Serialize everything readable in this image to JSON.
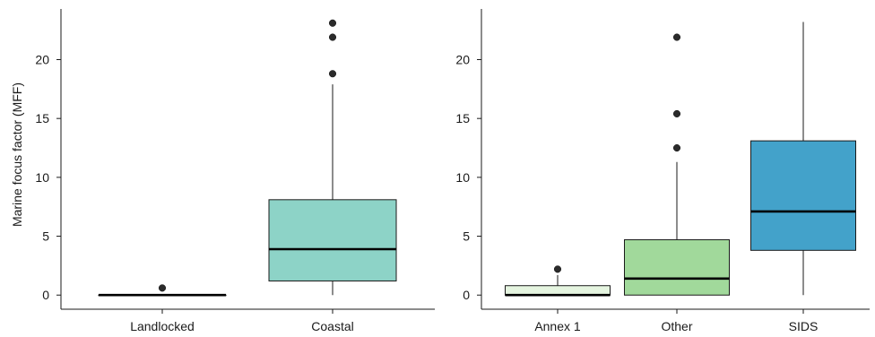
{
  "chart_data": [
    {
      "type": "boxplot",
      "title": "",
      "xlabel": "",
      "ylabel": "Marine focus factor (MFF)",
      "ylim": [
        -1.2,
        24.3
      ],
      "yticks": [
        0,
        5,
        10,
        15,
        20
      ],
      "ytick_labels": [
        "0",
        "5",
        "10",
        "15",
        "20"
      ],
      "grid": false,
      "legend": "none",
      "categories": [
        "Landlocked",
        "Coastal"
      ],
      "boxes": [
        {
          "category": "Landlocked",
          "color": "#f2f2f2",
          "min": 0,
          "q1": 0,
          "median": 0,
          "q3": 0,
          "max": 0,
          "outliers": [
            0.6
          ]
        },
        {
          "category": "Coastal",
          "color": "#8dd3c7",
          "min": 0,
          "q1": 1.2,
          "median": 3.9,
          "q3": 8.1,
          "max": 17.9,
          "outliers": [
            18.8,
            21.9,
            23.1
          ]
        }
      ]
    },
    {
      "type": "boxplot",
      "title": "",
      "xlabel": "",
      "ylabel": "",
      "ylim": [
        -1.2,
        24.3
      ],
      "yticks": [
        0,
        5,
        10,
        15,
        20
      ],
      "ytick_labels": [
        "0",
        "5",
        "10",
        "15",
        "20"
      ],
      "grid": false,
      "legend": "none",
      "categories": [
        "Annex 1",
        "Other",
        "SIDS"
      ],
      "boxes": [
        {
          "category": "Annex 1",
          "color": "#e5f5e0",
          "min": 0,
          "q1": 0,
          "median": 0,
          "q3": 0.8,
          "max": 1.7,
          "outliers": [
            2.2
          ]
        },
        {
          "category": "Other",
          "color": "#a1d99b",
          "min": 0,
          "q1": 0,
          "median": 1.4,
          "q3": 4.7,
          "max": 11.3,
          "outliers": [
            12.5,
            15.4,
            21.9
          ]
        },
        {
          "category": "SIDS",
          "color": "#43a2ca",
          "min": 0,
          "q1": 3.8,
          "median": 7.1,
          "q3": 13.1,
          "max": 23.2,
          "outliers": []
        }
      ]
    }
  ]
}
